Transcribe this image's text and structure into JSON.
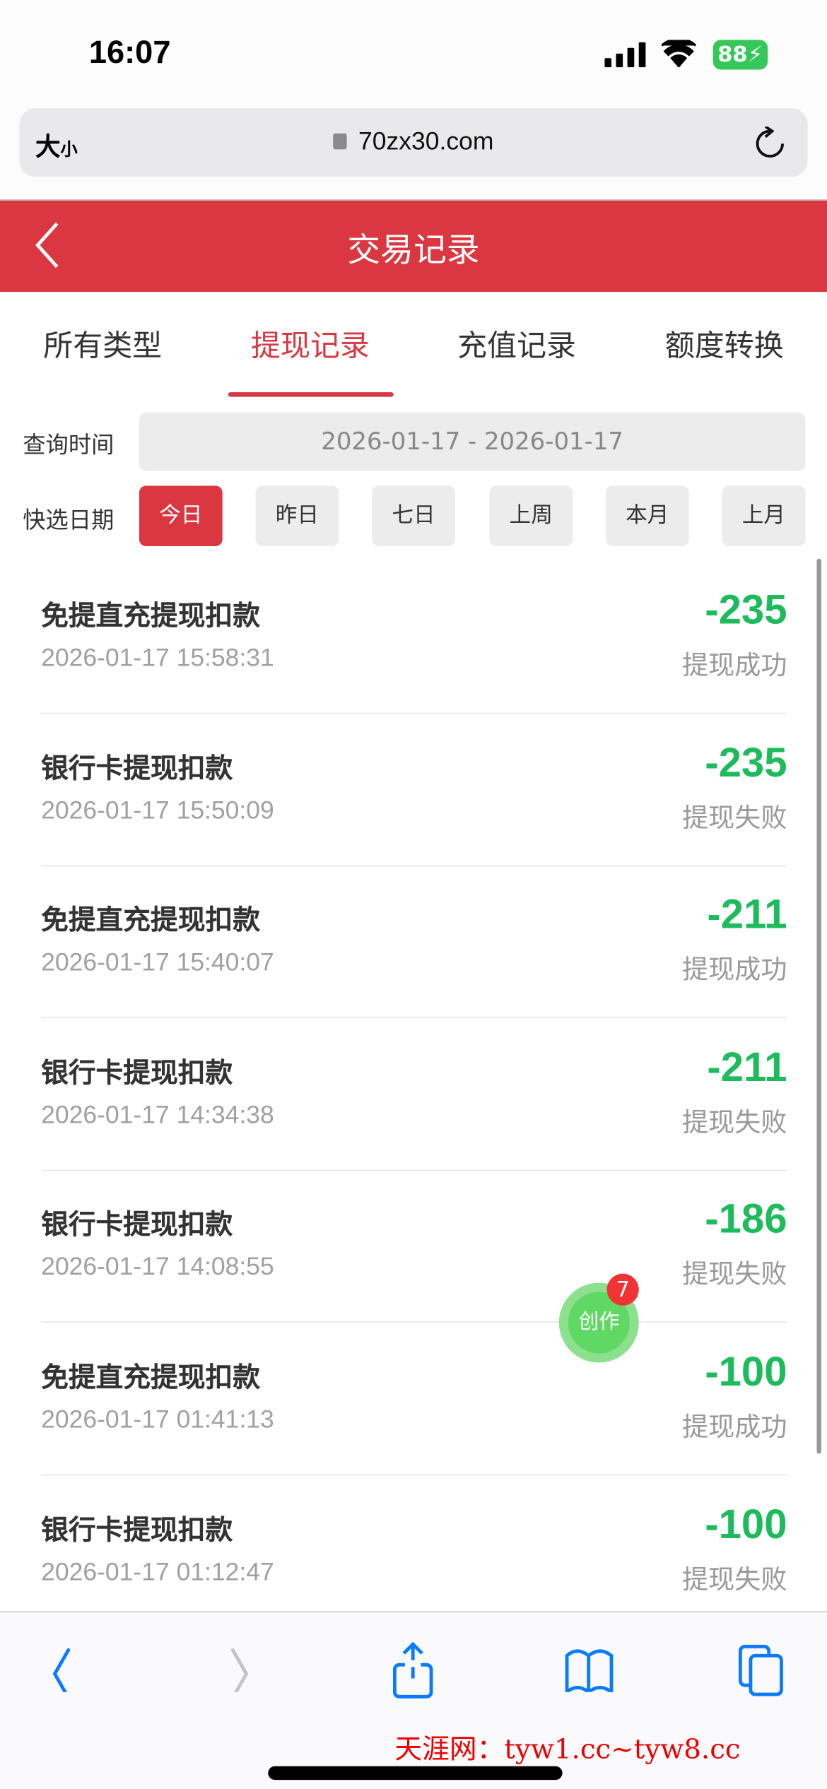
{
  "status_bar": {
    "time": "16:07",
    "battery": "88"
  },
  "browser": {
    "text_size": "大",
    "text_size_small": "小",
    "url": "70zx30.com"
  },
  "header": {
    "title": "交易记录"
  },
  "tabs": [
    {
      "label": "所有类型"
    },
    {
      "label": "提现记录",
      "active": true
    },
    {
      "label": "充值记录"
    },
    {
      "label": "额度转换"
    }
  ],
  "filters": {
    "query_label": "查询时间",
    "date_range": "2026-01-17 - 2026-01-17",
    "quick_label": "快选日期",
    "quick": [
      {
        "label": "今日",
        "active": true
      },
      {
        "label": "昨日"
      },
      {
        "label": "七日"
      },
      {
        "label": "上周"
      },
      {
        "label": "本月"
      },
      {
        "label": "上月"
      }
    ]
  },
  "records": [
    {
      "title": "免提直充提现扣款",
      "time": "2026-01-17 15:58:31",
      "amount": "-235",
      "status": "提现成功"
    },
    {
      "title": "银行卡提现扣款",
      "time": "2026-01-17 15:50:09",
      "amount": "-235",
      "status": "提现失败"
    },
    {
      "title": "免提直充提现扣款",
      "time": "2026-01-17 15:40:07",
      "amount": "-211",
      "status": "提现成功"
    },
    {
      "title": "银行卡提现扣款",
      "time": "2026-01-17 14:34:38",
      "amount": "-211",
      "status": "提现失败"
    },
    {
      "title": "银行卡提现扣款",
      "time": "2026-01-17 14:08:55",
      "amount": "-186",
      "status": "提现失败"
    },
    {
      "title": "免提直充提现扣款",
      "time": "2026-01-17 01:41:13",
      "amount": "-100",
      "status": "提现成功"
    },
    {
      "title": "银行卡提现扣款",
      "time": "2026-01-17 01:12:47",
      "amount": "-100",
      "status": "提现失败"
    }
  ],
  "fab": {
    "label": "创作",
    "badge": "7"
  },
  "watermark": "天涯网：tyw1.cc~tyw8.cc",
  "colors": {
    "brand": "#da3740",
    "amount": "#1dbb5c",
    "ios_blue": "#0a7aff"
  }
}
